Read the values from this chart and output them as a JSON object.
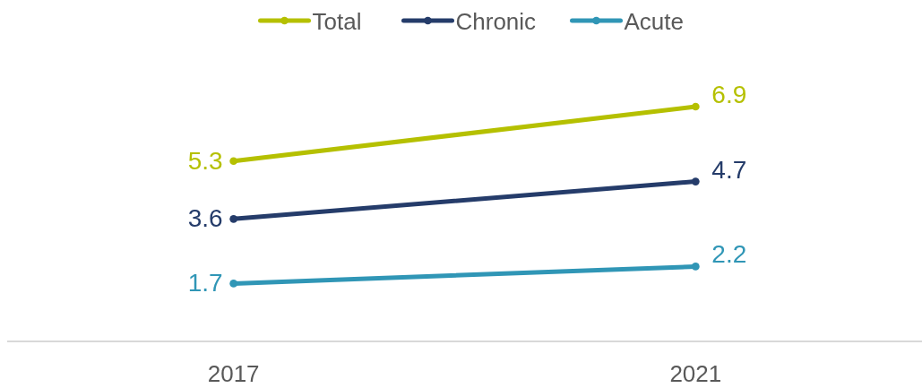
{
  "chart_data": {
    "type": "line",
    "categories": [
      "2017",
      "2021"
    ],
    "series": [
      {
        "name": "Total",
        "color": "#b5c000",
        "values": [
          5.3,
          6.9
        ]
      },
      {
        "name": "Chronic",
        "color": "#253c6a",
        "values": [
          3.6,
          4.7
        ]
      },
      {
        "name": "Acute",
        "color": "#3096b6",
        "values": [
          1.7,
          2.2
        ]
      }
    ],
    "data_labels": true,
    "legend": "top",
    "marker": "circle",
    "line_style": "solid",
    "tick_labels": "x"
  }
}
